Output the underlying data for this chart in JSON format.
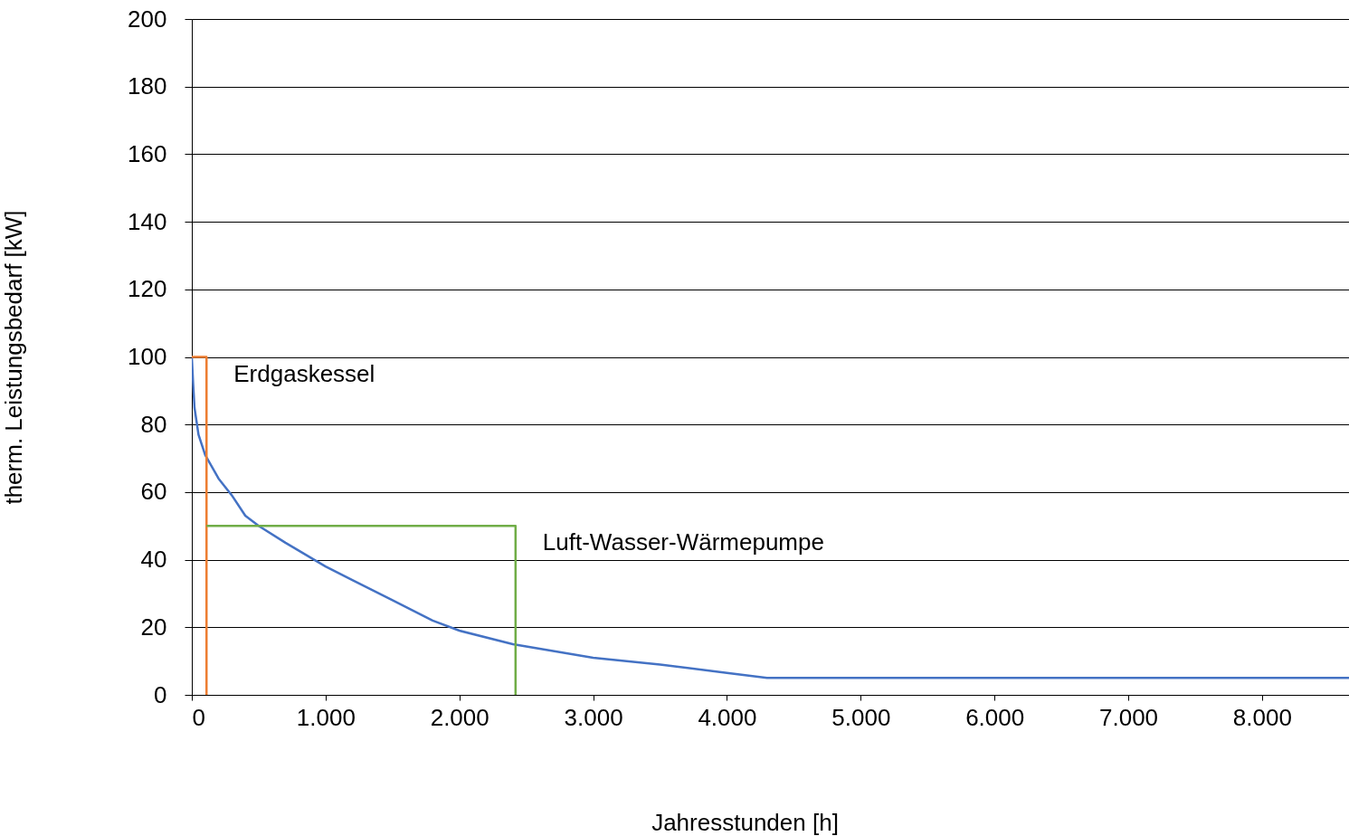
{
  "chart_data": {
    "type": "line",
    "xlabel": "Jahresstunden [h]",
    "ylabel": "therm. Leistungsbedarf [kW]",
    "xlim": [
      0,
      8650
    ],
    "ylim": [
      0,
      200
    ],
    "xticks": [
      0,
      {
        "value": 1000,
        "label": "1.000"
      },
      {
        "value": 2000,
        "label": "2.000"
      },
      {
        "value": 3000,
        "label": "3.000"
      },
      {
        "value": 4000,
        "label": "4.000"
      },
      {
        "value": 5000,
        "label": "5.000"
      },
      {
        "value": 6000,
        "label": "6.000"
      },
      {
        "value": 7000,
        "label": "7.000"
      },
      {
        "value": 8000,
        "label": "8.000"
      }
    ],
    "yticks": [
      0,
      20,
      40,
      60,
      80,
      100,
      120,
      140,
      160,
      180,
      200
    ],
    "grid": "y",
    "line_style": "solid",
    "marker": "none",
    "series": [
      {
        "color": "#4472c4",
        "x": [
          0,
          10,
          20,
          50,
          100,
          200,
          300,
          400,
          500,
          700,
          1000,
          1200,
          1500,
          1800,
          2000,
          2400,
          3000,
          3500,
          4000,
          4300,
          8650
        ],
        "values": [
          100,
          92,
          85,
          77,
          71,
          64,
          59,
          53,
          50,
          45,
          38,
          34,
          28,
          22,
          19,
          15,
          11,
          9,
          6.5,
          5,
          5
        ]
      },
      {
        "name": "Erdgaskessel",
        "color": "#ed7d31",
        "x": [
          0,
          110,
          110
        ],
        "values": [
          100,
          100,
          0
        ]
      },
      {
        "name": "Luft-Wasser-Wärmepumpe",
        "color": "#70ad47",
        "x": [
          110,
          2420,
          2420
        ],
        "values": [
          50,
          50,
          0
        ]
      }
    ]
  }
}
